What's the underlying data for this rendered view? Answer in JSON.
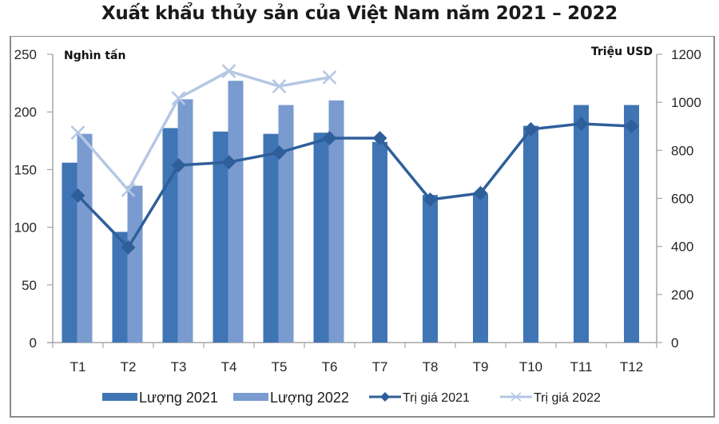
{
  "title": "Xuất khẩu thủy sản của Việt Nam năm 2021 – 2022",
  "colors": {
    "bar2021": "#3f75b5",
    "bar2022": "#7a9bcf",
    "line2021": "#2e5f9a",
    "line2022": "#b4c7e4",
    "axis": "#a6a6a6"
  },
  "chart_data": {
    "type": "bar",
    "combo": "bar + line (dual axis)",
    "title": "Xuất khẩu thủy sản của Việt Nam năm 2021 – 2022",
    "categories": [
      "T1",
      "T2",
      "T3",
      "T4",
      "T5",
      "T6",
      "T7",
      "T8",
      "T9",
      "T10",
      "T11",
      "T12"
    ],
    "left_axis": {
      "label": "Nghìn tấn",
      "range": [
        0,
        250
      ],
      "ticks": [
        0,
        50,
        100,
        150,
        200,
        250
      ]
    },
    "right_axis": {
      "label": "Triệu USD",
      "range": [
        0,
        1200
      ],
      "ticks": [
        0,
        200,
        400,
        600,
        800,
        1000,
        1200
      ]
    },
    "series": [
      {
        "name": "Lượng 2021",
        "type": "bar",
        "axis": "left",
        "values": [
          156,
          96,
          186,
          183,
          181,
          182,
          174,
          128,
          129,
          188,
          206,
          206
        ]
      },
      {
        "name": "Lượng 2022",
        "type": "bar",
        "axis": "left",
        "values": [
          181,
          136,
          211,
          227,
          206,
          210,
          null,
          null,
          null,
          null,
          null,
          null
        ]
      },
      {
        "name": "Trị giá 2021",
        "type": "line",
        "marker": "diamond",
        "axis": "right",
        "values": [
          612,
          396,
          738,
          751,
          791,
          851,
          851,
          595,
          622,
          888,
          911,
          901
        ]
      },
      {
        "name": "Trị giá 2022",
        "type": "line",
        "marker": "x",
        "axis": "right",
        "values": [
          874,
          635,
          1017,
          1130,
          1067,
          1104,
          null,
          null,
          null,
          null,
          null,
          null
        ]
      }
    ],
    "grid": false,
    "legend_position": "bottom"
  },
  "legend": [
    {
      "label": "Lượng 2021"
    },
    {
      "label": "Lượng 2022"
    },
    {
      "label": "Trị giá 2021"
    },
    {
      "label": "Trị giá 2022"
    }
  ]
}
